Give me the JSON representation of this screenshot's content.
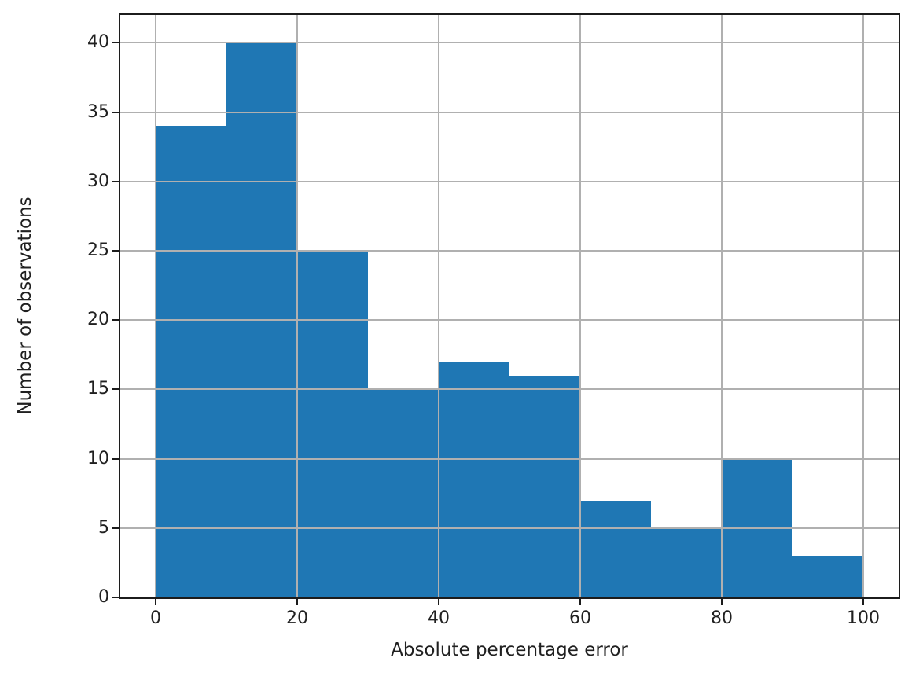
{
  "figure": {
    "background_color": "#ffffff"
  },
  "chart_data": {
    "type": "bar",
    "subtype": "histogram",
    "title": "",
    "xlabel": "Absolute percentage error",
    "ylabel": "Number of observations",
    "bin_edges": [
      0,
      10,
      20,
      30,
      40,
      50,
      60,
      70,
      80,
      90,
      100
    ],
    "values": [
      34,
      40,
      25,
      15,
      17,
      16,
      7,
      5,
      10,
      3
    ],
    "x_ticks": [
      0,
      20,
      40,
      60,
      80,
      100
    ],
    "y_ticks": [
      0,
      5,
      10,
      15,
      20,
      25,
      30,
      35,
      40
    ],
    "xlim": [
      -5,
      105
    ],
    "ylim": [
      0,
      42
    ],
    "grid": true,
    "grid_above_bars": true,
    "legend": "none",
    "bar_color": "#1f77b4",
    "grid_color": "#b0b0b0",
    "spine_color": "#1c1c1c",
    "text_color": "#202020"
  }
}
